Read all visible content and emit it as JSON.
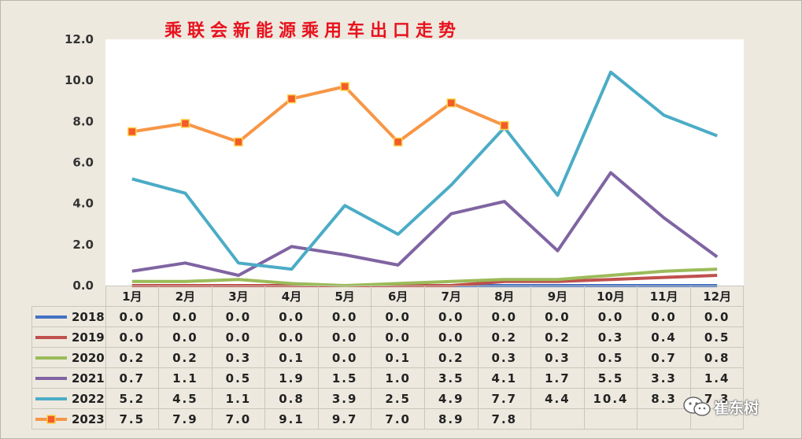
{
  "chart_data": {
    "type": "line",
    "title": "乘联会新能源乘用车出口走势",
    "categories": [
      "1月",
      "2月",
      "3月",
      "4月",
      "5月",
      "6月",
      "7月",
      "8月",
      "9月",
      "10月",
      "11月",
      "12月"
    ],
    "y_ticks": [
      "12.0",
      "10.0",
      "8.0",
      "6.0",
      "4.0",
      "2.0",
      "0.0"
    ],
    "ylim": [
      0,
      12
    ],
    "grid": false,
    "legend": "in data table",
    "series": [
      {
        "name": "2018",
        "color": "#4472c4",
        "marker": "none",
        "values": [
          0,
          0,
          0,
          0,
          0,
          0,
          0,
          0,
          0,
          0,
          0,
          0
        ],
        "labels": [
          "0.0",
          "0.0",
          "0.0",
          "0.0",
          "0.0",
          "0.0",
          "0.0",
          "0.0",
          "0.0",
          "0.0",
          "0.0",
          "0.0"
        ]
      },
      {
        "name": "2019",
        "color": "#c0504d",
        "marker": "none",
        "values": [
          0,
          0,
          0,
          0,
          0,
          0,
          0,
          0.2,
          0.2,
          0.3,
          0.4,
          0.5
        ],
        "labels": [
          "0.0",
          "0.0",
          "0.0",
          "0.0",
          "0.0",
          "0.0",
          "0.0",
          "0.2",
          "0.2",
          "0.3",
          "0.4",
          "0.5"
        ]
      },
      {
        "name": "2020",
        "color": "#9bbb59",
        "marker": "none",
        "values": [
          0.2,
          0.2,
          0.3,
          0.1,
          0,
          0.1,
          0.2,
          0.3,
          0.3,
          0.5,
          0.7,
          0.8
        ],
        "labels": [
          "0.2",
          "0.2",
          "0.3",
          "0.1",
          "0.0",
          "0.1",
          "0.2",
          "0.3",
          "0.3",
          "0.5",
          "0.7",
          "0.8"
        ]
      },
      {
        "name": "2021",
        "color": "#8064a2",
        "marker": "none",
        "values": [
          0.7,
          1.1,
          0.5,
          1.9,
          1.5,
          1.0,
          3.5,
          4.1,
          1.7,
          5.5,
          3.3,
          1.4
        ],
        "labels": [
          "0.7",
          "1.1",
          "0.5",
          "1.9",
          "1.5",
          "1.0",
          "3.5",
          "4.1",
          "1.7",
          "5.5",
          "3.3",
          "1.4"
        ]
      },
      {
        "name": "2022",
        "color": "#4bacc6",
        "marker": "none",
        "values": [
          5.2,
          4.5,
          1.1,
          0.8,
          3.9,
          2.5,
          4.9,
          7.7,
          4.4,
          10.4,
          8.3,
          7.3
        ],
        "labels": [
          "5.2",
          "4.5",
          "1.1",
          "0.8",
          "3.9",
          "2.5",
          "4.9",
          "7.7",
          "4.4",
          "10.4",
          "8.3",
          "7.3"
        ]
      },
      {
        "name": "2023",
        "color": "#f79646",
        "marker": "square",
        "values": [
          7.5,
          7.9,
          7.0,
          9.1,
          9.7,
          7.0,
          8.9,
          7.8,
          null,
          null,
          null,
          null
        ],
        "labels": [
          "7.5",
          "7.9",
          "7.0",
          "9.1",
          "9.7",
          "7.0",
          "8.9",
          "7.8",
          "",
          "",
          "",
          ""
        ]
      }
    ]
  },
  "watermark": {
    "text": "崔东树",
    "icon": "wechat-icon"
  }
}
